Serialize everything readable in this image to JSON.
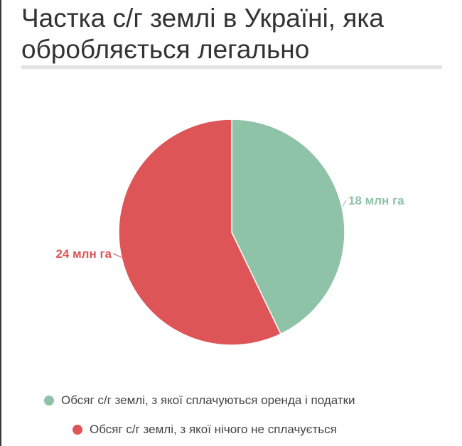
{
  "chart_data": {
    "type": "pie",
    "title": "Частка с/г землі в Україні, яка обробляється легально",
    "legend_position": "bottom",
    "series": [
      {
        "name": "Обсяг с/г землі, з якої сплачуються оренда і податки",
        "value": 18,
        "label": "18 млн га",
        "color": "#8ec3a7"
      },
      {
        "name": "Обсяг с/г землі, з якої нічого не сплачується",
        "value": 24,
        "label": "24 млн га",
        "color": "#dd5556"
      }
    ]
  }
}
